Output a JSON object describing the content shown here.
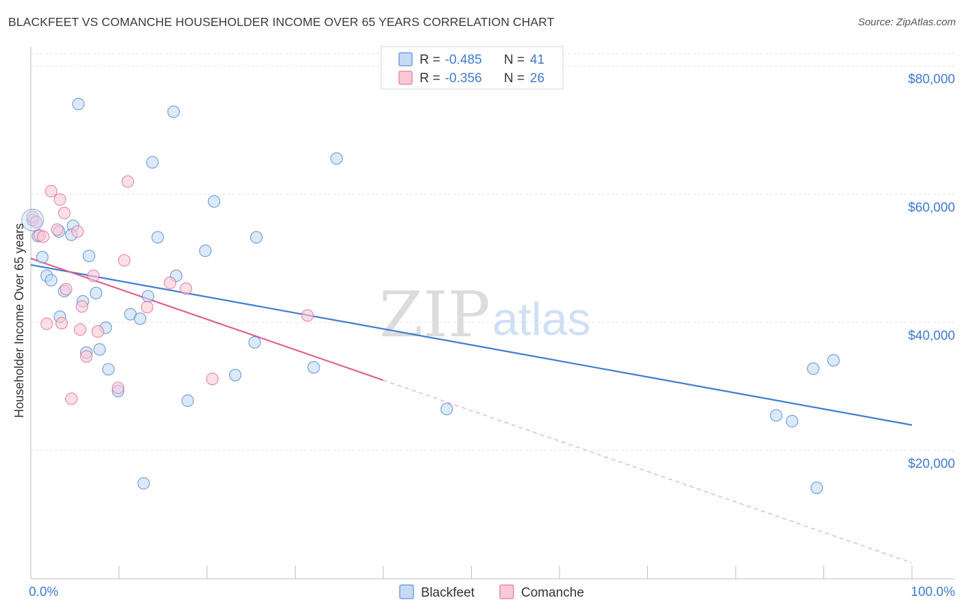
{
  "header": {
    "title": "BLACKFEET VS COMANCHE HOUSEHOLDER INCOME OVER 65 YEARS CORRELATION CHART",
    "source": "Source: ZipAtlas.com"
  },
  "watermark": {
    "zip": "ZIP",
    "atlas": "atlas"
  },
  "colors": {
    "blackfeet": "#3d7bd1",
    "blackfeet_fill": "#c5daf5",
    "comanche": "#e0608e",
    "comanche_fill": "#f8c9d7",
    "grid": "#e3e3e3",
    "axis_text": "#3d7bd1"
  },
  "legend_top": {
    "rows": [
      {
        "r_label": "R = ",
        "r_value": "-0.485",
        "n_label": "N = ",
        "n_value": "41"
      },
      {
        "r_label": "R = ",
        "r_value": "-0.356",
        "n_label": "N = ",
        "n_value": "26"
      }
    ]
  },
  "legend_bottom": {
    "items": [
      "Blackfeet",
      "Comanche"
    ]
  },
  "chart_data": {
    "type": "scatter",
    "ylabel": "Householder Income Over 65 years",
    "xlim": [
      0,
      100
    ],
    "ylim": [
      0,
      82000
    ],
    "x_tick_labels": [
      "0.0%",
      "100.0%"
    ],
    "y_ticks": [
      20000,
      40000,
      60000,
      80000
    ],
    "y_tick_labels": [
      "$20,000",
      "$40,000",
      "$60,000",
      "$80,000"
    ],
    "grid": true,
    "legend_placement": "top-center",
    "series": [
      {
        "name": "Blackfeet",
        "trend": {
          "x": [
            0,
            100
          ],
          "y": [
            49000,
            24000
          ]
        },
        "points": [
          [
            0.2,
            56000
          ],
          [
            0.8,
            53500
          ],
          [
            1.3,
            50200
          ],
          [
            1.8,
            47300
          ],
          [
            2.3,
            46600
          ],
          [
            3.2,
            54200
          ],
          [
            3.3,
            40900
          ],
          [
            3.8,
            44900
          ],
          [
            4.8,
            55100
          ],
          [
            4.6,
            53700
          ],
          [
            5.4,
            74100
          ],
          [
            5.9,
            43300
          ],
          [
            6.3,
            35300
          ],
          [
            6.6,
            50400
          ],
          [
            7.4,
            44600
          ],
          [
            7.8,
            35800
          ],
          [
            8.5,
            39200
          ],
          [
            8.8,
            32700
          ],
          [
            9.9,
            29300
          ],
          [
            11.3,
            41300
          ],
          [
            12.4,
            40600
          ],
          [
            12.8,
            14900
          ],
          [
            13.3,
            44100
          ],
          [
            13.8,
            65000
          ],
          [
            14.4,
            53300
          ],
          [
            16.2,
            72900
          ],
          [
            16.5,
            47300
          ],
          [
            17.8,
            27800
          ],
          [
            19.8,
            51200
          ],
          [
            20.8,
            58900
          ],
          [
            23.2,
            31800
          ],
          [
            25.4,
            36900
          ],
          [
            25.6,
            53300
          ],
          [
            32.1,
            33000
          ],
          [
            34.7,
            65600
          ],
          [
            47.2,
            26500
          ],
          [
            84.6,
            25500
          ],
          [
            86.4,
            24600
          ],
          [
            88.8,
            32800
          ],
          [
            89.2,
            14200
          ],
          [
            91.1,
            34100
          ]
        ]
      },
      {
        "name": "Comanche",
        "trend": {
          "x": [
            0,
            40
          ],
          "y": [
            50000,
            31000
          ]
        },
        "trend_dashed": {
          "x": [
            40,
            100
          ],
          "y": [
            31000,
            2500
          ]
        },
        "points": [
          [
            0.2,
            56500
          ],
          [
            1.0,
            53600
          ],
          [
            1.4,
            53400
          ],
          [
            1.8,
            39800
          ],
          [
            2.3,
            60500
          ],
          [
            3.0,
            54500
          ],
          [
            3.3,
            59200
          ],
          [
            3.5,
            39900
          ],
          [
            3.8,
            57100
          ],
          [
            4.0,
            45200
          ],
          [
            4.6,
            28100
          ],
          [
            5.3,
            54200
          ],
          [
            5.6,
            38900
          ],
          [
            5.8,
            42500
          ],
          [
            6.3,
            34700
          ],
          [
            7.1,
            47300
          ],
          [
            7.6,
            38600
          ],
          [
            9.9,
            29800
          ],
          [
            10.6,
            49700
          ],
          [
            11.0,
            62000
          ],
          [
            13.2,
            42400
          ],
          [
            15.8,
            46200
          ],
          [
            17.6,
            45300
          ],
          [
            20.6,
            31200
          ],
          [
            31.4,
            41100
          ],
          [
            0.6,
            55700
          ]
        ]
      }
    ]
  }
}
